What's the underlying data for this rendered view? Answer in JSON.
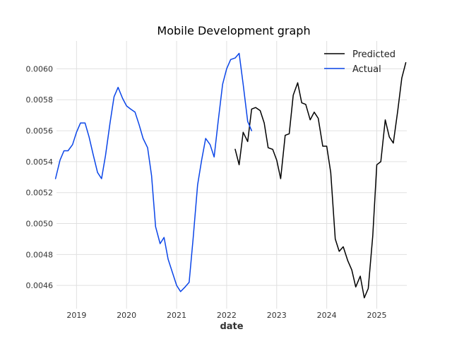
{
  "chart_data": {
    "type": "line",
    "title": "Mobile Development graph",
    "xlabel": "date",
    "ylabel": "",
    "xlim": [
      2018.6,
      2025.6
    ],
    "ylim": [
      0.00445,
      0.00618
    ],
    "x_ticks": [
      2019,
      2020,
      2021,
      2022,
      2023,
      2024,
      2025
    ],
    "x_tick_labels": [
      "2019",
      "2020",
      "2021",
      "2022",
      "2023",
      "2024",
      "2025"
    ],
    "y_ticks": [
      0.0046,
      0.0048,
      0.005,
      0.0052,
      0.0054,
      0.0056,
      0.0058,
      0.006
    ],
    "y_tick_labels": [
      "0.0046",
      "0.0048",
      "0.0050",
      "0.0052",
      "0.0054",
      "0.0056",
      "0.0058",
      "0.0060"
    ],
    "grid": true,
    "legend_position": "top-right",
    "series": [
      {
        "name": "Predicted",
        "color": "#000000",
        "x": [
          2022.17,
          2022.25,
          2022.33,
          2022.42,
          2022.5,
          2022.58,
          2022.67,
          2022.75,
          2022.83,
          2022.92,
          2023.0,
          2023.08,
          2023.17,
          2023.25,
          2023.33,
          2023.42,
          2023.5,
          2023.58,
          2023.67,
          2023.75,
          2023.83,
          2023.92,
          2024.0,
          2024.08,
          2024.17,
          2024.25,
          2024.33,
          2024.42,
          2024.5,
          2024.58,
          2024.67,
          2024.75,
          2024.83,
          2024.92,
          2025.0,
          2025.08,
          2025.17,
          2025.25,
          2025.33,
          2025.42,
          2025.5,
          2025.58
        ],
        "y": [
          0.00548,
          0.00538,
          0.00559,
          0.00553,
          0.00574,
          0.00575,
          0.00573,
          0.00565,
          0.00549,
          0.00548,
          0.00541,
          0.00529,
          0.00557,
          0.00558,
          0.00583,
          0.00591,
          0.00578,
          0.00577,
          0.00567,
          0.00572,
          0.00568,
          0.0055,
          0.0055,
          0.00533,
          0.0049,
          0.00482,
          0.00485,
          0.00476,
          0.0047,
          0.00459,
          0.00466,
          0.00452,
          0.00458,
          0.00492,
          0.00538,
          0.0054,
          0.00567,
          0.00556,
          0.00552,
          0.00573,
          0.00594,
          0.00604
        ]
      },
      {
        "name": "Actual",
        "color": "#0a45e8",
        "x": [
          2018.58,
          2018.67,
          2018.75,
          2018.83,
          2018.92,
          2019.0,
          2019.08,
          2019.17,
          2019.25,
          2019.33,
          2019.42,
          2019.5,
          2019.58,
          2019.67,
          2019.75,
          2019.83,
          2019.92,
          2020.0,
          2020.08,
          2020.17,
          2020.25,
          2020.33,
          2020.42,
          2020.5,
          2020.58,
          2020.67,
          2020.75,
          2020.83,
          2020.92,
          2021.0,
          2021.08,
          2021.17,
          2021.25,
          2021.33,
          2021.42,
          2021.5,
          2021.58,
          2021.67,
          2021.75,
          2021.83,
          2021.92,
          2022.0,
          2022.08,
          2022.17,
          2022.25,
          2022.33,
          2022.42,
          2022.5
        ],
        "y": [
          0.00529,
          0.00541,
          0.00547,
          0.00547,
          0.00551,
          0.00559,
          0.00565,
          0.00565,
          0.00556,
          0.00545,
          0.00533,
          0.00529,
          0.00544,
          0.00565,
          0.00582,
          0.00588,
          0.00581,
          0.00576,
          0.00574,
          0.00572,
          0.00564,
          0.00555,
          0.00549,
          0.00531,
          0.00498,
          0.00487,
          0.00491,
          0.00477,
          0.00468,
          0.0046,
          0.00456,
          0.00459,
          0.00462,
          0.0049,
          0.00525,
          0.00541,
          0.00555,
          0.00551,
          0.00543,
          0.00566,
          0.0059,
          0.006,
          0.00606,
          0.00607,
          0.0061,
          0.0059,
          0.00566,
          0.0056
        ]
      }
    ]
  }
}
